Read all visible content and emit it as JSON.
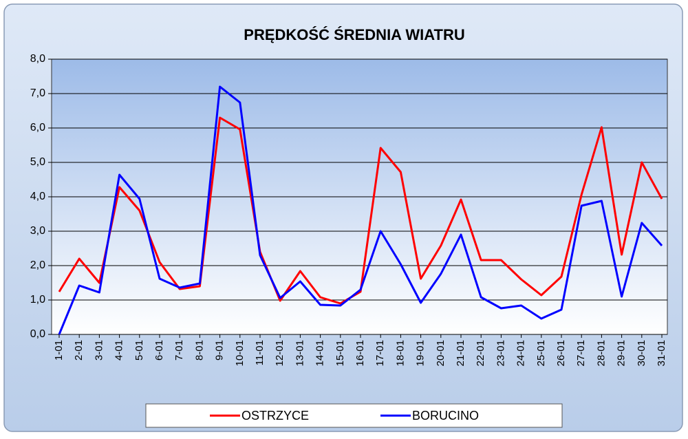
{
  "chart_data": {
    "type": "line",
    "title": "PRĘDKOŚĆ ŚREDNIA WIATRU",
    "categories": [
      "1-01",
      "2-01",
      "3-01",
      "4-01",
      "5-01",
      "6-01",
      "7-01",
      "8-01",
      "9-01",
      "10-01",
      "11-01",
      "12-01",
      "13-01",
      "14-01",
      "15-01",
      "16-01",
      "17-01",
      "18-01",
      "19-01",
      "20-01",
      "21-01",
      "22-01",
      "23-01",
      "24-01",
      "25-01",
      "26-01",
      "27-01",
      "28-01",
      "29-01",
      "30-01",
      "31-01"
    ],
    "series": [
      {
        "name": "OSTRZYCE",
        "color": "#ff0000",
        "values": [
          1.24,
          2.2,
          1.5,
          4.28,
          3.6,
          2.1,
          1.32,
          1.4,
          6.3,
          5.96,
          2.4,
          0.98,
          1.84,
          1.08,
          0.9,
          1.24,
          5.42,
          4.72,
          1.62,
          2.58,
          3.92,
          2.16,
          2.16,
          1.6,
          1.14,
          1.68,
          4.06,
          6.02,
          2.32,
          5.0,
          3.94
        ]
      },
      {
        "name": "BORUCINO",
        "color": "#0000ff",
        "values": [
          0.0,
          1.42,
          1.22,
          4.64,
          3.94,
          1.62,
          1.36,
          1.48,
          7.2,
          6.74,
          2.3,
          1.06,
          1.54,
          0.86,
          0.84,
          1.3,
          3.0,
          2.04,
          0.92,
          1.76,
          2.9,
          1.08,
          0.76,
          0.84,
          0.46,
          0.72,
          3.74,
          3.88,
          1.1,
          3.24,
          2.58
        ]
      }
    ],
    "ylim": [
      0,
      8
    ],
    "yticks": [
      {
        "value": 0,
        "label": "0,0"
      },
      {
        "value": 1,
        "label": "1,0"
      },
      {
        "value": 2,
        "label": "2,0"
      },
      {
        "value": 3,
        "label": "3,0"
      },
      {
        "value": 4,
        "label": "4,0"
      },
      {
        "value": 5,
        "label": "5,0"
      },
      {
        "value": 6,
        "label": "6,0"
      },
      {
        "value": 7,
        "label": "7,0"
      },
      {
        "value": 8,
        "label": "8,0"
      }
    ],
    "grid": true,
    "legend": "bottom"
  }
}
